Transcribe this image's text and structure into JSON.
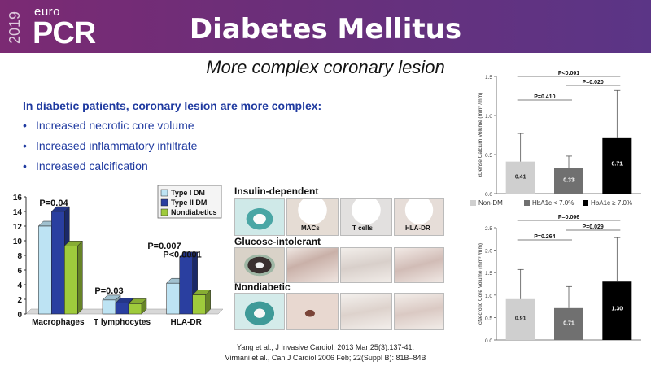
{
  "header": {
    "logo_year": "2019",
    "logo_euro": "euro",
    "logo_pcr": "PCR",
    "title": "Diabetes Mellitus"
  },
  "subtitle": "More complex coronary lesion",
  "intro": "In diabetic patients, coronary lesion are more complex:",
  "bullets": [
    "Increased necrotic core volume",
    "Increased inflammatory infiltrate",
    "Increased calcification"
  ],
  "histology": {
    "rows": [
      "Insulin-dependent",
      "Glucose-intolerant",
      "Nondiabetic"
    ],
    "tags": [
      "MACs",
      "T cells",
      "HLA-DR"
    ]
  },
  "references": [
    "Yang et al., J Invasive Cardiol. 2013 Mar;25(3):137-41.",
    "Virmani et al., Can J Cardiol 2006 Feb; 22(Suppl B): 81B–84B"
  ],
  "colors": {
    "banner": "#6a2f7a",
    "text_blue": "#1f3aa0",
    "type1": "#bde3f3",
    "type2": "#2a3fa0",
    "nondiabetic": "#9fcb3c",
    "nondm": "#cfcfcf",
    "hba1c_low": "#707070",
    "hba1c_high": "#000000"
  },
  "chart_data": [
    {
      "type": "bar",
      "categories": [
        "Macrophages",
        "T lymphocytes",
        "HLA-DR"
      ],
      "series": [
        {
          "name": "Type I DM",
          "values": [
            12,
            1.9,
            4.2
          ]
        },
        {
          "name": "Type II DM",
          "values": [
            14,
            1.5,
            7.8
          ]
        },
        {
          "name": "Nondiabetics",
          "values": [
            9.3,
            1.4,
            2.6
          ]
        }
      ],
      "ylim": [
        0,
        16
      ],
      "yticks": [
        0,
        2,
        4,
        6,
        8,
        10,
        12,
        14,
        16
      ],
      "annotations": [
        "P=0.04",
        "P=0.03",
        "P=0.007",
        "P<0.0001"
      ],
      "legend": "top-right",
      "grid": false
    },
    {
      "type": "bar",
      "categories": [
        "Non-DM",
        "HbA1c < 7.0%",
        "HbA1c ≥ 7.0%"
      ],
      "values": [
        0.41,
        0.33,
        0.71
      ],
      "value_labels": [
        "0.41",
        "0.33",
        "0.71"
      ],
      "errors": [
        0.36,
        0.15,
        0.61
      ],
      "ylabel": "cDense Calcium Volume (mm³ /mm)",
      "ylim": [
        0,
        1.5
      ],
      "yticks": [
        "0.0",
        "0.5",
        "1.0",
        "1.5"
      ],
      "brackets": [
        "P<0.001",
        "P=0.410",
        "P=0.020"
      ],
      "legend": "bottom",
      "grid": false
    },
    {
      "type": "bar",
      "categories": [
        "Non-DM",
        "HbA1c < 7.0%",
        "HbA1c ≥ 7.0%"
      ],
      "values": [
        0.91,
        0.71,
        1.3
      ],
      "value_labels": [
        "0.91",
        "0.71",
        "1.30"
      ],
      "errors": [
        0.66,
        0.48,
        0.98
      ],
      "ylabel": "cNecrotic Core Volume (mm³ /mm)",
      "ylim": [
        0,
        2.5
      ],
      "yticks": [
        "0.0",
        "0.5",
        "1.0",
        "1.5",
        "2.0",
        "2.5"
      ],
      "brackets": [
        "P=0.006",
        "P=0.264",
        "P=0.029"
      ],
      "grid": false
    }
  ]
}
